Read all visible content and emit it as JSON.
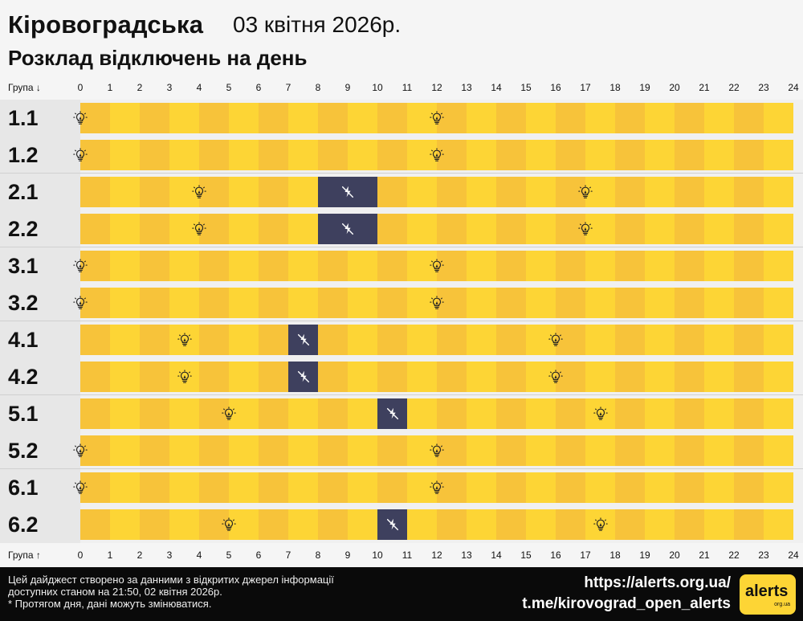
{
  "header": {
    "region": "Кіровоградська",
    "date": "03 квітня 2026р.",
    "subtitle": "Розклад відключень на день"
  },
  "axis": {
    "top_label": "Група",
    "bottom_label": "Група",
    "ticks": [
      "0",
      "1",
      "2",
      "3",
      "4",
      "5",
      "6",
      "7",
      "8",
      "9",
      "10",
      "11",
      "12",
      "13",
      "14",
      "15",
      "16",
      "17",
      "18",
      "19",
      "20",
      "21",
      "22",
      "23",
      "24"
    ]
  },
  "groups": [
    {
      "label": "1.1",
      "outages": [],
      "bulbs": [
        0,
        12
      ]
    },
    {
      "label": "1.2",
      "outages": [],
      "bulbs": [
        0,
        12
      ]
    },
    {
      "label": "2.1",
      "outages": [
        [
          8,
          10
        ]
      ],
      "bulbs": [
        4,
        17
      ]
    },
    {
      "label": "2.2",
      "outages": [
        [
          8,
          10
        ]
      ],
      "bulbs": [
        4,
        17
      ]
    },
    {
      "label": "3.1",
      "outages": [],
      "bulbs": [
        0,
        12
      ]
    },
    {
      "label": "3.2",
      "outages": [],
      "bulbs": [
        0,
        12
      ]
    },
    {
      "label": "4.1",
      "outages": [
        [
          7,
          8
        ]
      ],
      "bulbs": [
        3.5,
        16
      ]
    },
    {
      "label": "4.2",
      "outages": [
        [
          7,
          8
        ]
      ],
      "bulbs": [
        3.5,
        16
      ]
    },
    {
      "label": "5.1",
      "outages": [
        [
          10,
          11
        ]
      ],
      "bulbs": [
        5,
        17.5
      ]
    },
    {
      "label": "5.2",
      "outages": [],
      "bulbs": [
        0,
        12
      ]
    },
    {
      "label": "6.1",
      "outages": [],
      "bulbs": [
        0,
        12
      ]
    },
    {
      "label": "6.2",
      "outages": [
        [
          10,
          11
        ]
      ],
      "bulbs": [
        5,
        17.5
      ]
    }
  ],
  "colors": {
    "on_a": "#f7c33a",
    "on_b": "#fdd535",
    "off": "#3e405e"
  },
  "icons": {
    "power_on": "lightbulb-icon",
    "power_off": "power-off-icon"
  },
  "footer": {
    "note_line1": "Цей дайджест створено за данними з відкритих джерел інформації",
    "note_line2": "доступних станом на 21:50, 02 квітня 2026р.",
    "note_line3": "* Протягом дня, дані можуть змінюватися.",
    "link1": "https://alerts.org.ua/",
    "link2": "t.me/kirovograd_open_alerts",
    "logo_text": "alerts",
    "logo_sub": "org.ua"
  }
}
